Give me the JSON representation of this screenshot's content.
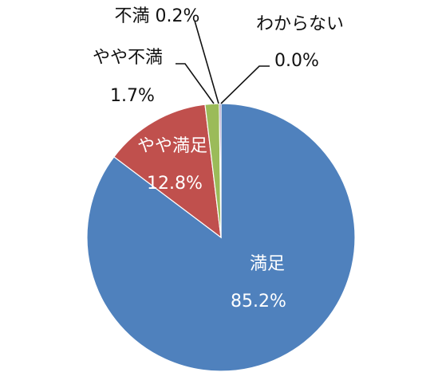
{
  "chart_data": {
    "type": "pie",
    "title": "",
    "legend": "none",
    "slices": [
      {
        "name": "満足",
        "value": 85.2,
        "value_label": "85.2%",
        "color": "#4F81BD"
      },
      {
        "name": "やや満足",
        "value": 12.8,
        "value_label": "12.8%",
        "color": "#C0504D"
      },
      {
        "name": "やや不満",
        "value": 1.7,
        "value_label": "1.7%",
        "color": "#9BBB59"
      },
      {
        "name": "不満",
        "value": 0.2,
        "value_label": "0.2%",
        "color": "#8064A2"
      },
      {
        "name": "わからない",
        "value": 0.0,
        "value_label": "0.0%",
        "color": "#4BACC6"
      }
    ],
    "direction": "clockwise",
    "start": "12 o'clock"
  }
}
